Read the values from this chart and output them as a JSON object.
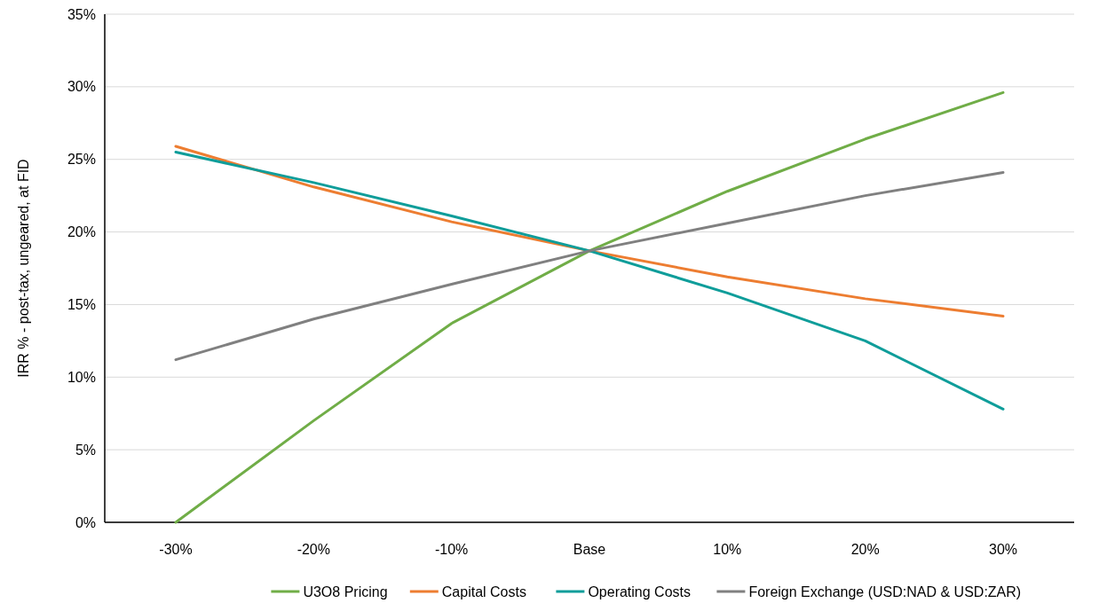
{
  "chart_data": {
    "type": "line",
    "ylabel": "IRR % - post-tax, ungeared, at FID",
    "categories": [
      "-30%",
      "-20%",
      "-10%",
      "Base",
      "10%",
      "20%",
      "30%"
    ],
    "series": [
      {
        "name": "U3O8 Pricing",
        "color": "#70ad47",
        "values": [
          0,
          7.0,
          13.7,
          18.7,
          22.8,
          26.4,
          29.6
        ]
      },
      {
        "name": "Capital Costs",
        "color": "#ed7d31",
        "values": [
          25.9,
          23.1,
          20.7,
          18.7,
          16.9,
          15.4,
          14.2
        ]
      },
      {
        "name": "Operating Costs",
        "color": "#0f9d9a",
        "values": [
          25.5,
          23.4,
          21.1,
          18.7,
          15.8,
          12.5,
          7.8
        ]
      },
      {
        "name": "Foreign Exchange (USD:NAD & USD:ZAR)",
        "color": "#808080",
        "values": [
          11.2,
          14.0,
          16.4,
          18.7,
          20.6,
          22.5,
          24.1
        ]
      }
    ],
    "ylim": [
      0,
      35
    ],
    "yticks": [
      {
        "value": 0,
        "label": "0%"
      },
      {
        "value": 5,
        "label": "5%"
      },
      {
        "value": 10,
        "label": "10%"
      },
      {
        "value": 15,
        "label": "15%"
      },
      {
        "value": 20,
        "label": "20%"
      },
      {
        "value": 25,
        "label": "25%"
      },
      {
        "value": 30,
        "label": "30%"
      },
      {
        "value": 35,
        "label": "35%"
      }
    ],
    "grid": "y",
    "legend": "bottom",
    "marker": "none",
    "line_style": "solid"
  }
}
